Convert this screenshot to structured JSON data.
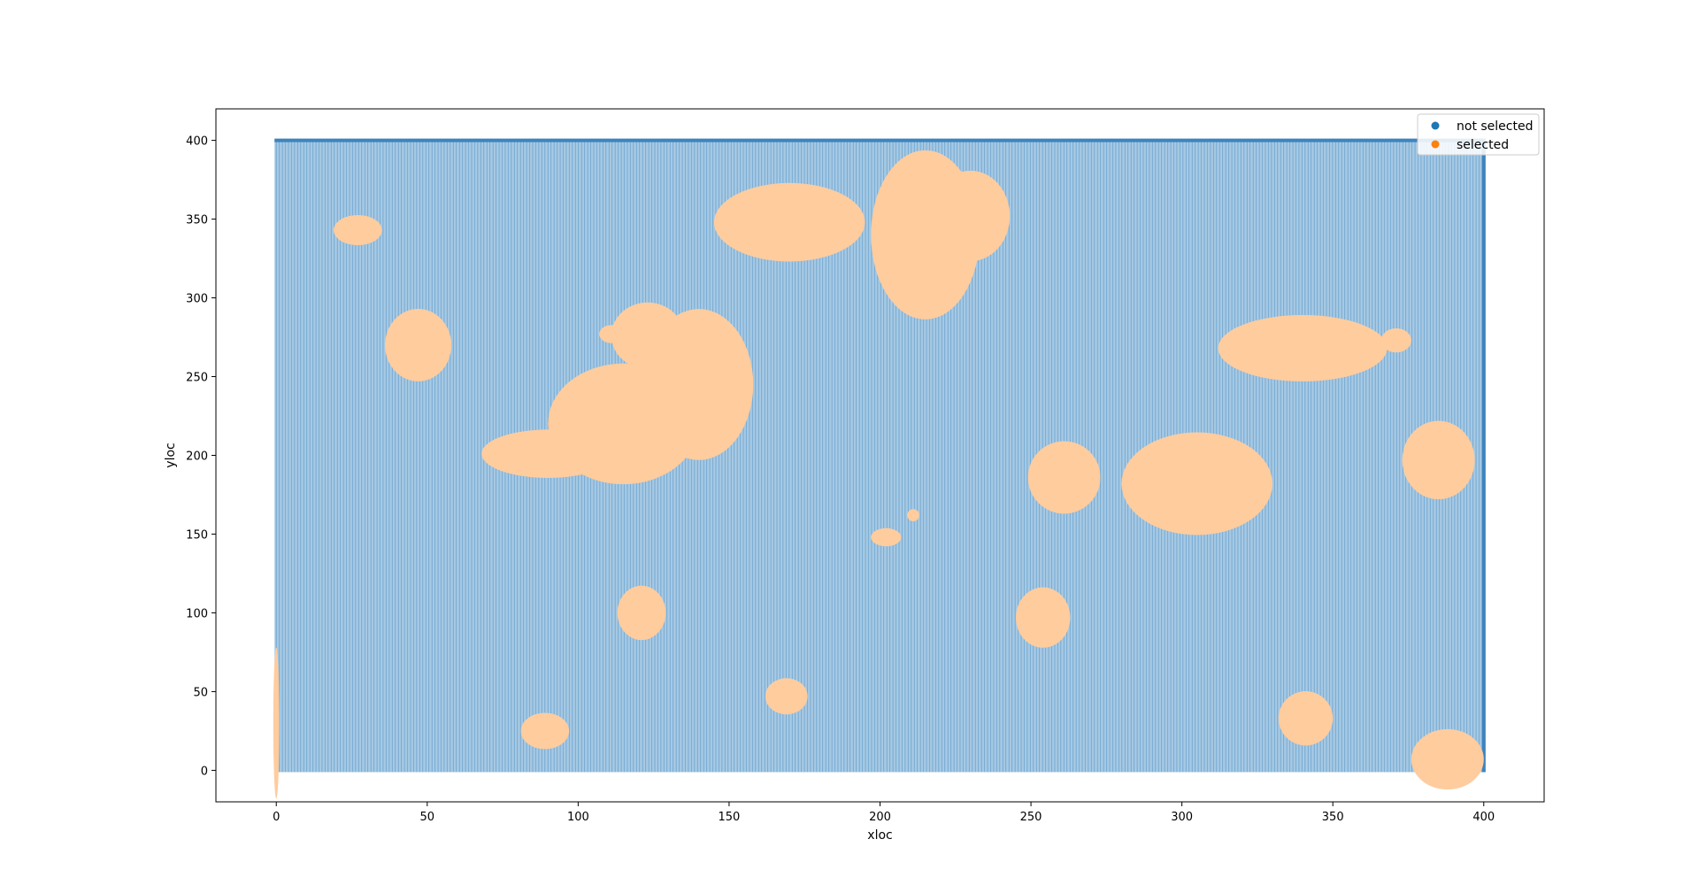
{
  "chart_data": {
    "type": "scatter",
    "title": "",
    "xlabel": "xloc",
    "ylabel": "yloc",
    "xlim": [
      -20,
      420
    ],
    "ylim": [
      -20,
      420
    ],
    "x_ticks": [
      0,
      50,
      100,
      150,
      200,
      250,
      300,
      350,
      400
    ],
    "y_ticks": [
      0,
      50,
      100,
      150,
      200,
      250,
      300,
      350,
      400
    ],
    "grid": false,
    "legend_position": "top-right",
    "grid_extent": {
      "x": [
        0,
        400
      ],
      "y": [
        0,
        400
      ]
    },
    "series": [
      {
        "name": "not selected",
        "color": "#1f77b4",
        "region_color": "#a7c9e3",
        "description_of_points": "regular lattice covering x 0-400, y 0-400"
      },
      {
        "name": "selected",
        "color": "#ff7f0e",
        "region_color": "#ffcc9e",
        "clusters": [
          {
            "cx": 27,
            "cy": 343,
            "rx": 8,
            "ry": 5
          },
          {
            "cx": 47,
            "cy": 270,
            "rx": 11,
            "ry": 12
          },
          {
            "cx": 123,
            "cy": 276,
            "rx": 12,
            "ry": 11
          },
          {
            "cx": 111,
            "cy": 277,
            "rx": 4,
            "ry": 3
          },
          {
            "cx": 90,
            "cy": 201,
            "rx": 22,
            "ry": 8
          },
          {
            "cx": 115,
            "cy": 220,
            "rx": 25,
            "ry": 20
          },
          {
            "cx": 140,
            "cy": 245,
            "rx": 18,
            "ry": 25
          },
          {
            "cx": 170,
            "cy": 348,
            "rx": 25,
            "ry": 13
          },
          {
            "cx": 215,
            "cy": 340,
            "rx": 18,
            "ry": 28
          },
          {
            "cx": 230,
            "cy": 352,
            "rx": 13,
            "ry": 15
          },
          {
            "cx": 261,
            "cy": 186,
            "rx": 12,
            "ry": 12
          },
          {
            "cx": 305,
            "cy": 182,
            "rx": 25,
            "ry": 17
          },
          {
            "cx": 340,
            "cy": 268,
            "rx": 28,
            "ry": 11
          },
          {
            "cx": 371,
            "cy": 273,
            "rx": 5,
            "ry": 4
          },
          {
            "cx": 385,
            "cy": 197,
            "rx": 12,
            "ry": 13
          },
          {
            "cx": 121,
            "cy": 100,
            "rx": 8,
            "ry": 9
          },
          {
            "cx": 254,
            "cy": 97,
            "rx": 9,
            "ry": 10
          },
          {
            "cx": 211,
            "cy": 162,
            "rx": 2,
            "ry": 2
          },
          {
            "cx": 202,
            "cy": 148,
            "rx": 5,
            "ry": 3
          },
          {
            "cx": 169,
            "cy": 47,
            "rx": 7,
            "ry": 6
          },
          {
            "cx": 89,
            "cy": 25,
            "rx": 8,
            "ry": 6
          },
          {
            "cx": 341,
            "cy": 33,
            "rx": 9,
            "ry": 9
          },
          {
            "cx": 388,
            "cy": 7,
            "rx": 12,
            "ry": 10
          },
          {
            "cx": 0,
            "cy": 30,
            "rx": 1,
            "ry": 25
          }
        ]
      }
    ]
  }
}
